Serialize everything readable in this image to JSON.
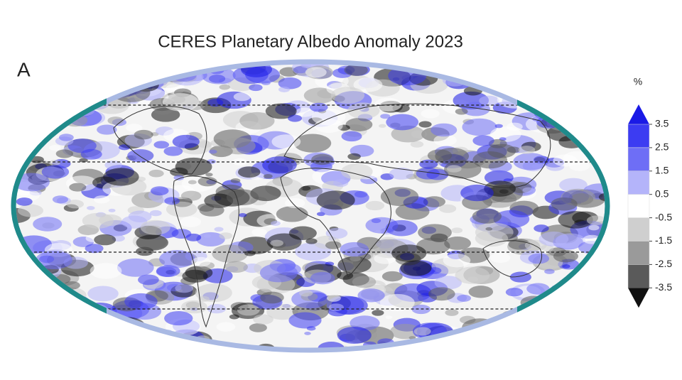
{
  "title": "CERES Planetary Albedo Anomaly 2023",
  "panel_label": "A",
  "colorbar": {
    "unit": "%",
    "ticks": [
      3.5,
      2.5,
      1.5,
      0.5,
      -0.5,
      -1.5,
      -2.5,
      -3.5
    ],
    "colors": [
      "#1a1ae6",
      "#3c3cf2",
      "#6e6ef6",
      "#b4b4fa",
      "#ffffff",
      "#cfcfcf",
      "#9a9a9a",
      "#5a5a5a",
      "#111111"
    ]
  }
}
